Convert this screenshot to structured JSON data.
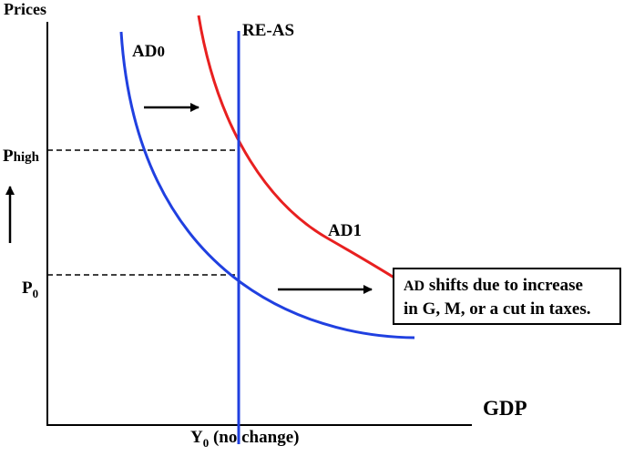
{
  "axes": {
    "y_label": "Prices",
    "x_label": "GDP"
  },
  "curves": {
    "ad0": {
      "label": "AD",
      "label_sub": "0",
      "color": "#2040e0"
    },
    "ad1": {
      "label": "AD1",
      "color": "#e82020"
    },
    "reas": {
      "label": "RE-AS",
      "color": "#2040e0"
    }
  },
  "price_levels": {
    "high": {
      "main": "P",
      "sub": "high"
    },
    "base": {
      "main": "P",
      "sub": "0"
    }
  },
  "output_label": {
    "main": "Y",
    "sub": "0",
    "rest": " (no change)"
  },
  "note": {
    "line1_prefix": "AD",
    "line1_rest": "  shifts due to increase",
    "line2": "in G, M, or a cut in taxes."
  }
}
